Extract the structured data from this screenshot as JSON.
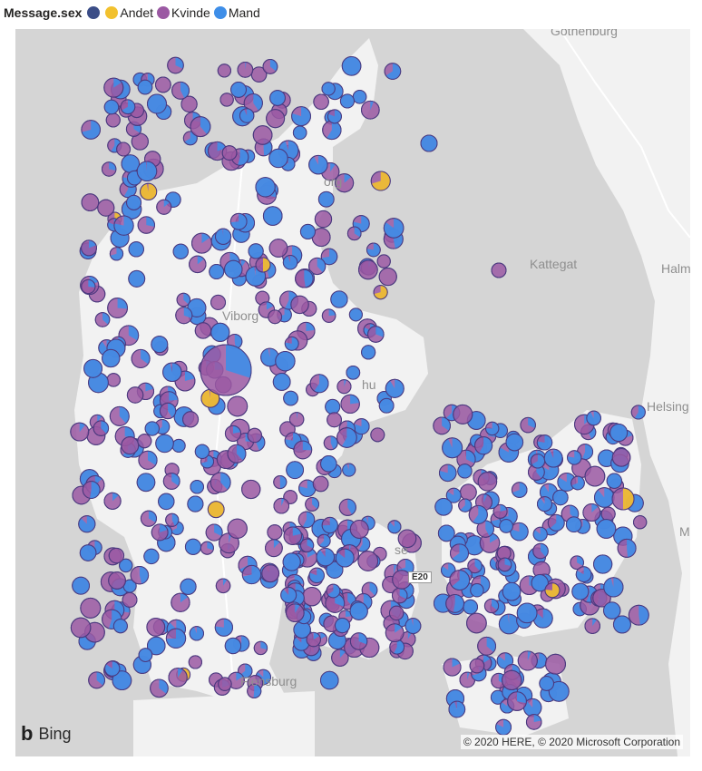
{
  "legend": {
    "title": "Message.sex",
    "items": [
      {
        "label": "",
        "color": "#3b4d87"
      },
      {
        "label": "Andet",
        "color": "#f2c12e"
      },
      {
        "label": "Kvinde",
        "color": "#9b59a3"
      },
      {
        "label": "Mand",
        "color": "#3e8ee8"
      }
    ]
  },
  "map": {
    "labels": {
      "gothenburg": "Gothenburg",
      "kattegat": "Kattegat",
      "halm": "Halm",
      "helsing": "Helsing",
      "viborg": "Viborg",
      "flensburg": "Flensburg",
      "aalborg_frag": "org",
      "aarhus_frag": "hu",
      "odense_frag": "se",
      "m_frag": "M"
    },
    "road_shield": "E20",
    "bing": "Bing",
    "copyright": "© 2020 HERE, © 2020 Microsoft Corporation",
    "colors": {
      "water": "#d5d5d5",
      "land": "#f2f2f2",
      "road": "#ffffff"
    }
  }
}
